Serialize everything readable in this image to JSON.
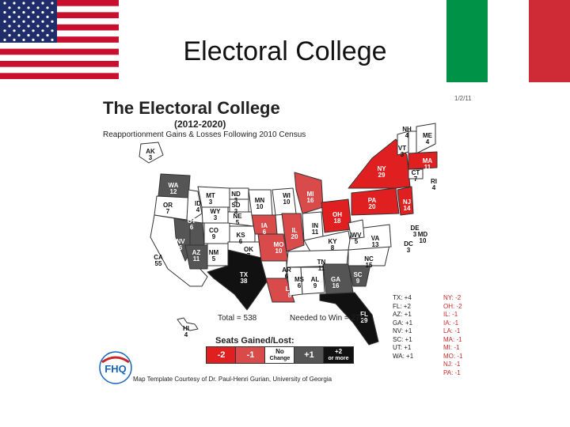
{
  "slide": {
    "title": "Electoral College"
  },
  "map": {
    "title": "The Electoral College",
    "years": "(2012-2020)",
    "subtitle": "Reapportionment Gains & Losses Following 2010 Census",
    "date": "1/2/11",
    "total_text": "Total = 538",
    "needed_text": "Needed to Win = 270",
    "credit": "Map Template Courtesy of Dr. Paul-Henri Gurian, University of Georgia",
    "logo_text": "FHQ",
    "colors": {
      "gain2": "#111111",
      "gain1": "#555555",
      "nochange": "#ffffff",
      "lose1": "#d94b4b",
      "lose2": "#e02020"
    },
    "states": [
      {
        "abbr": "WA",
        "votes": "12",
        "cls": "w"
      },
      {
        "abbr": "OR",
        "votes": "7",
        "cls": "k"
      },
      {
        "abbr": "CA",
        "votes": "55",
        "cls": "k"
      },
      {
        "abbr": "ID",
        "votes": "4",
        "cls": "k"
      },
      {
        "abbr": "NV",
        "votes": "6",
        "cls": "w"
      },
      {
        "abbr": "MT",
        "votes": "3",
        "cls": "k"
      },
      {
        "abbr": "WY",
        "votes": "3",
        "cls": "k"
      },
      {
        "abbr": "UT",
        "votes": "6",
        "cls": "w"
      },
      {
        "abbr": "AZ",
        "votes": "11",
        "cls": "w"
      },
      {
        "abbr": "CO",
        "votes": "9",
        "cls": "k"
      },
      {
        "abbr": "NM",
        "votes": "5",
        "cls": "k"
      },
      {
        "abbr": "ND",
        "votes": "3",
        "cls": "k"
      },
      {
        "abbr": "SD",
        "votes": "3",
        "cls": "k"
      },
      {
        "abbr": "NE",
        "votes": "5",
        "cls": "k"
      },
      {
        "abbr": "KS",
        "votes": "6",
        "cls": "k"
      },
      {
        "abbr": "OK",
        "votes": "7",
        "cls": "k"
      },
      {
        "abbr": "TX",
        "votes": "38",
        "cls": "w"
      },
      {
        "abbr": "MN",
        "votes": "10",
        "cls": "k"
      },
      {
        "abbr": "IA",
        "votes": "6",
        "cls": "w"
      },
      {
        "abbr": "MO",
        "votes": "10",
        "cls": "w"
      },
      {
        "abbr": "AR",
        "votes": "6",
        "cls": "k"
      },
      {
        "abbr": "LA",
        "votes": "8",
        "cls": "w"
      },
      {
        "abbr": "WI",
        "votes": "10",
        "cls": "k"
      },
      {
        "abbr": "IL",
        "votes": "20",
        "cls": "w"
      },
      {
        "abbr": "MI",
        "votes": "16",
        "cls": "w"
      },
      {
        "abbr": "IN",
        "votes": "11",
        "cls": "k"
      },
      {
        "abbr": "OH",
        "votes": "18",
        "cls": "w"
      },
      {
        "abbr": "KY",
        "votes": "8",
        "cls": "k"
      },
      {
        "abbr": "TN",
        "votes": "11",
        "cls": "k"
      },
      {
        "abbr": "MS",
        "votes": "6",
        "cls": "k"
      },
      {
        "abbr": "AL",
        "votes": "9",
        "cls": "k"
      },
      {
        "abbr": "GA",
        "votes": "16",
        "cls": "w"
      },
      {
        "abbr": "FL",
        "votes": "29",
        "cls": "w"
      },
      {
        "abbr": "SC",
        "votes": "9",
        "cls": "w"
      },
      {
        "abbr": "NC",
        "votes": "15",
        "cls": "k"
      },
      {
        "abbr": "VA",
        "votes": "13",
        "cls": "k"
      },
      {
        "abbr": "WV",
        "votes": "5",
        "cls": "k"
      },
      {
        "abbr": "PA",
        "votes": "20",
        "cls": "w"
      },
      {
        "abbr": "NY",
        "votes": "29",
        "cls": "w"
      },
      {
        "abbr": "NJ",
        "votes": "14",
        "cls": "w"
      },
      {
        "abbr": "DE",
        "votes": "3",
        "cls": "k"
      },
      {
        "abbr": "MD",
        "votes": "10",
        "cls": "k"
      },
      {
        "abbr": "DC",
        "votes": "3",
        "cls": "k"
      },
      {
        "abbr": "CT",
        "votes": "7",
        "cls": "k"
      },
      {
        "abbr": "RI",
        "votes": "4",
        "cls": "k"
      },
      {
        "abbr": "MA",
        "votes": "11",
        "cls": "w"
      },
      {
        "abbr": "VT",
        "votes": "3",
        "cls": "k"
      },
      {
        "abbr": "NH",
        "votes": "4",
        "cls": "k"
      },
      {
        "abbr": "ME",
        "votes": "4",
        "cls": "k"
      },
      {
        "abbr": "AK",
        "votes": "3",
        "cls": "k"
      },
      {
        "abbr": "HI",
        "votes": "4",
        "cls": "k"
      }
    ],
    "legend": {
      "title": "Seats Gained/Lost:",
      "items": [
        {
          "label": "-2",
          "sub": ""
        },
        {
          "label": "-1",
          "sub": ""
        },
        {
          "label": "No",
          "sub": "Change"
        },
        {
          "label": "+1",
          "sub": ""
        },
        {
          "label": "+2",
          "sub": "or more"
        }
      ]
    },
    "gains": [
      "TX: +4",
      "FL: +2",
      "AZ: +1",
      "GA: +1",
      "NV: +1",
      "SC: +1",
      "UT: +1",
      "WA: +1"
    ],
    "losses": [
      "NY: -2",
      "OH: -2",
      "IL: -1",
      "IA: -1",
      "LA: -1",
      "MA: -1",
      "MI: -1",
      "MO: -1",
      "NJ: -1",
      "PA: -1"
    ]
  }
}
